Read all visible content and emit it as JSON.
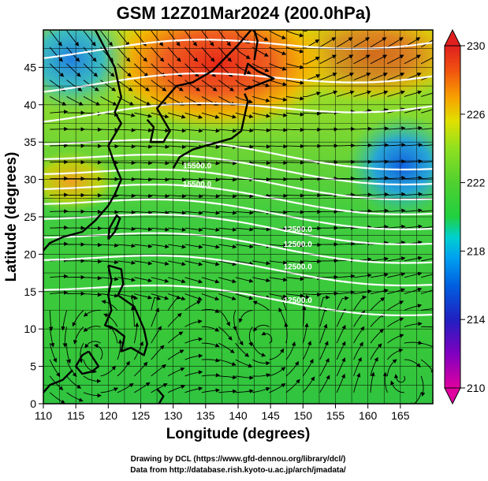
{
  "title": "GSM 12Z01Mar2024 (200.0hPa)",
  "map": {
    "xlabel": "Longitude (degrees)",
    "ylabel": "Latitude (degrees)",
    "xlim": [
      110,
      170
    ],
    "ylim": [
      0,
      50
    ],
    "x_ticks": [
      "110",
      "115",
      "120",
      "125",
      "130",
      "135",
      "140",
      "145",
      "150",
      "155",
      "160",
      "165"
    ],
    "y_ticks": [
      "0",
      "5",
      "10",
      "15",
      "20",
      "25",
      "30",
      "35",
      "40",
      "45"
    ],
    "grid": true,
    "field": "Temperature (K) shaded, wind streamlines, geopotential height contours (white)"
  },
  "colorbar": {
    "min": 210,
    "max": 230,
    "labels": [
      "210",
      "214",
      "218",
      "222",
      "226",
      "230"
    ],
    "colors": [
      "#e000a0",
      "#8000c0",
      "#2020c0",
      "#0060e0",
      "#00a0f0",
      "#00d0d0",
      "#20d040",
      "#50d030",
      "#90e020",
      "#e0e000",
      "#f8a000",
      "#f05010",
      "#e02020"
    ]
  },
  "contours": {
    "labels": [
      "12500.0",
      "12500.0",
      "12500.0",
      "12500.0",
      "15500.0",
      "15500.0"
    ]
  },
  "credits": {
    "line1": "Drawing by DCL (https://www.gfd-dennou.org/library/dcl/)",
    "line2": "Data from http://database.rish.kyoto-u.ac.jp/arch/jmadata/"
  }
}
